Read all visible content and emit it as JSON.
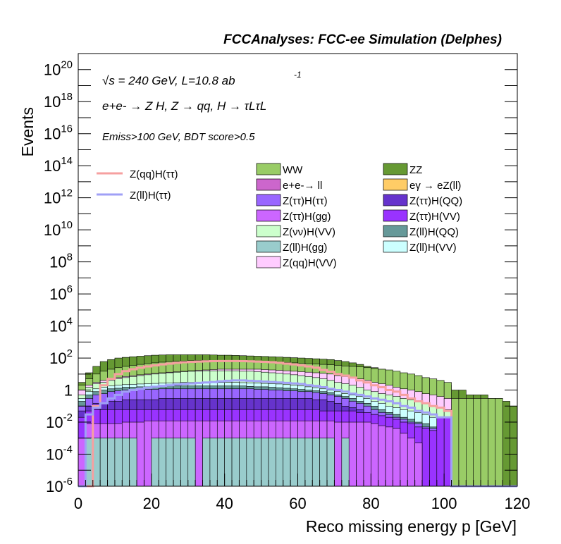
{
  "chart_data": {
    "type": "area",
    "stacked": true,
    "header": "FCCAnalyses: FCC-ee Simulation (Delphes)",
    "ylabel": "Events",
    "xlabel": "Reco missing energy p [GeV]",
    "xlim": [
      0,
      120
    ],
    "ylim": [
      1e-06,
      1e+21
    ],
    "log_y": true,
    "bin_width": 2,
    "x_ticks": [
      0,
      20,
      40,
      60,
      80,
      100,
      120
    ],
    "y_ticks": [
      "10^-6",
      "10^-4",
      "10^-2",
      "1",
      "10^2",
      "10^4",
      "10^6",
      "10^8",
      "10^10",
      "10^12",
      "10^14",
      "10^16",
      "10^18",
      "10^20"
    ],
    "annotations": {
      "energy": "√s = 240 GeV, L=10.8 ab",
      "energy_exp": "-1",
      "process": "e+e- → Z H, Z → qq, H → τLτL",
      "cuts": "Emiss>100 GeV, BDT score>0.5"
    },
    "legend_lines": [
      {
        "name": "Z(qq)H(ττ)",
        "color": "#f6a0a0"
      },
      {
        "name": "Z(ll)H(ττ)",
        "color": "#a0a0f6"
      }
    ],
    "legend_fills": [
      {
        "name": "WW",
        "color": "#99cc66"
      },
      {
        "name": "ZZ",
        "color": "#669933"
      },
      {
        "name": "e+e-→ ll",
        "color": "#cc66cc"
      },
      {
        "name": "eγ → eZ(ll)",
        "color": "#ffcc66"
      },
      {
        "name": "Z(ττ)H(ττ)",
        "color": "#9966ff"
      },
      {
        "name": "Z(ττ)H(QQ)",
        "color": "#6633cc"
      },
      {
        "name": "Z(ττ)H(gg)",
        "color": "#cc66ff"
      },
      {
        "name": "Z(ττ)H(VV)",
        "color": "#9933ff"
      },
      {
        "name": "Z(νν)H(VV)",
        "color": "#ccffcc"
      },
      {
        "name": "Z(ll)H(QQ)",
        "color": "#669999"
      },
      {
        "name": "Z(ll)H(gg)",
        "color": "#99cccc"
      },
      {
        "name": "Z(ll)H(VV)",
        "color": "#ccffff"
      },
      {
        "name": "Z(qq)H(VV)",
        "color": "#ffccff"
      }
    ],
    "stack_boundaries": [
      {
        "name": "Z(ll)H(gg)",
        "color": "#99cccc",
        "values": [
          0,
          0.001,
          0.001,
          0.001,
          0.001,
          0.001,
          0.001,
          0.001,
          0,
          0,
          0.001,
          0.001,
          0.001,
          0.001,
          0.001,
          0.001,
          0,
          0.001,
          0.001,
          0.001,
          0.001,
          0.001,
          0.001,
          0.001,
          0.001,
          0.001,
          0.001,
          0.001,
          0.001,
          0.001,
          0.001,
          0.001,
          0.001,
          0.001,
          0.001,
          0,
          0.001,
          0,
          0,
          0,
          0,
          0,
          0,
          0,
          0,
          0,
          0,
          0,
          0,
          0,
          0,
          0,
          0,
          0,
          0,
          0,
          0,
          0,
          0,
          0
        ]
      },
      {
        "name": "Z(ττ)H(gg)",
        "color": "#cc66ff",
        "values": [
          0.001,
          0.008,
          0.008,
          0.008,
          0.008,
          0.008,
          0.01,
          0.01,
          0.01,
          0.012,
          0.012,
          0.012,
          0.012,
          0.012,
          0.012,
          0.012,
          0.012,
          0.012,
          0.012,
          0.012,
          0.012,
          0.012,
          0.012,
          0.012,
          0.012,
          0.012,
          0.012,
          0.012,
          0.012,
          0.012,
          0.012,
          0.012,
          0.012,
          0.012,
          0.012,
          0.01,
          0.01,
          0.01,
          0.01,
          0.01,
          0.008,
          0.006,
          0.005,
          0.004,
          0.002,
          0.001,
          0.0005,
          0,
          0,
          0,
          0,
          0,
          0,
          0,
          0,
          0,
          0,
          0,
          0,
          0
        ]
      },
      {
        "name": "Z(ττ)H(VV)",
        "color": "#9933ff",
        "values": [
          0.02,
          0.05,
          0.06,
          0.06,
          0.06,
          0.06,
          0.06,
          0.06,
          0.06,
          0.06,
          0.06,
          0.06,
          0.06,
          0.06,
          0.06,
          0.06,
          0.06,
          0.06,
          0.06,
          0.06,
          0.06,
          0.06,
          0.06,
          0.06,
          0.06,
          0.06,
          0.06,
          0.06,
          0.06,
          0.06,
          0.06,
          0.06,
          0.06,
          0.05,
          0.05,
          0.05,
          0.05,
          0.05,
          0.04,
          0.04,
          0.03,
          0.025,
          0.02,
          0.015,
          0.01,
          0.008,
          0.005,
          0.004,
          0.003,
          0.02,
          0.02,
          0,
          0,
          0,
          0,
          0,
          0,
          0,
          0,
          0
        ]
      },
      {
        "name": "Z(ττ)H(QQ)",
        "color": "#6633cc",
        "values": [
          0.05,
          0.1,
          0.15,
          0.15,
          0.2,
          0.2,
          0.25,
          0.25,
          0.25,
          0.25,
          0.25,
          0.3,
          0.3,
          0.3,
          0.3,
          0.3,
          0.3,
          0.3,
          0.3,
          0.3,
          0.3,
          0.3,
          0.3,
          0.3,
          0.3,
          0.3,
          0.3,
          0.3,
          0.3,
          0.3,
          0.3,
          0.3,
          0.25,
          0.25,
          0.2,
          0.15,
          0.1,
          0.08,
          0.06,
          0.04,
          0.03,
          0.025,
          0.02,
          0.015,
          0.01,
          0.008,
          0.005,
          0.004,
          0.003,
          0.02,
          0.02,
          0,
          0,
          0,
          0,
          0,
          0,
          0,
          0,
          0
        ]
      },
      {
        "name": "Z(ττ)H(ττ)",
        "color": "#9966ff",
        "values": [
          0.1,
          0.3,
          0.5,
          0.6,
          0.8,
          0.9,
          1,
          1,
          1.1,
          1.1,
          1.1,
          1.2,
          1.2,
          1.2,
          1.2,
          1.2,
          1.2,
          1.2,
          1.2,
          1.2,
          1.2,
          1.2,
          1.2,
          1.2,
          1.1,
          1.1,
          1,
          1,
          0.9,
          0.9,
          0.8,
          0.8,
          0.7,
          0.6,
          0.5,
          0.4,
          0.3,
          0.2,
          0.15,
          0.1,
          0.06,
          0.04,
          0.03,
          0.02,
          0.015,
          0.01,
          0.008,
          0.005,
          0.004,
          0.02,
          0.02,
          0,
          0,
          0,
          0,
          0,
          0,
          0,
          0,
          0
        ]
      },
      {
        "name": "Z(ll)H(QQ)",
        "color": "#669999",
        "values": [
          0.2,
          0.5,
          0.8,
          1,
          1.2,
          1.3,
          1.5,
          1.5,
          1.6,
          1.6,
          1.7,
          1.8,
          1.8,
          1.8,
          1.8,
          1.8,
          1.8,
          1.8,
          1.8,
          1.8,
          1.8,
          1.8,
          1.8,
          1.7,
          1.6,
          1.6,
          1.5,
          1.4,
          1.3,
          1.2,
          1.1,
          1,
          0.9,
          0.8,
          0.7,
          0.5,
          0.4,
          0.3,
          0.2,
          0.15,
          0.1,
          0.06,
          0.04,
          0.03,
          0.02,
          0.015,
          0.01,
          0.008,
          0.005,
          0.02,
          0.02,
          0,
          0,
          0,
          0,
          0,
          0,
          0,
          0,
          0
        ]
      },
      {
        "name": "Z(ll)H(VV)",
        "color": "#ccffff",
        "values": [
          0.3,
          0.8,
          1.2,
          1.5,
          1.8,
          2,
          2.2,
          2.3,
          2.4,
          2.5,
          2.6,
          2.7,
          2.8,
          2.9,
          3,
          3,
          3,
          3,
          3,
          3,
          3,
          3,
          2.9,
          2.8,
          2.7,
          2.6,
          2.5,
          2.4,
          2.2,
          2,
          1.8,
          1.6,
          1.4,
          1.2,
          1,
          0.8,
          0.6,
          0.5,
          0.4,
          0.3,
          0.2,
          0.15,
          0.1,
          0.08,
          0.06,
          0.05,
          0.04,
          0.03,
          0.02,
          0.02,
          0.02,
          0,
          0,
          0,
          0,
          0,
          0,
          0,
          0,
          0
        ]
      },
      {
        "name": "Z(νν)H(VV)",
        "color": "#ccffcc",
        "values": [
          0.5,
          1.5,
          2.5,
          3,
          4,
          5,
          6,
          7,
          8,
          9,
          10,
          11,
          12,
          13,
          14,
          15,
          15,
          16,
          16,
          16,
          16,
          16,
          15,
          15,
          14,
          13,
          12,
          11,
          10,
          9,
          8,
          7,
          6,
          5,
          4,
          3,
          2.5,
          2,
          1.5,
          1,
          0.8,
          0.6,
          0.5,
          0.4,
          0.3,
          0.25,
          0.2,
          0.15,
          0.1,
          0.08,
          0.06,
          0,
          0,
          0,
          0,
          0,
          0,
          0,
          0,
          0
        ]
      },
      {
        "name": "Z(qq)H(VV)",
        "color": "#ffccff",
        "values": [
          1,
          2,
          3,
          4,
          5,
          6,
          7,
          8,
          9,
          10,
          11,
          12,
          13,
          14,
          15,
          16,
          17,
          18,
          19,
          20,
          20,
          20,
          20,
          20,
          20,
          19,
          18,
          17,
          16,
          15,
          14,
          13,
          12,
          11,
          10,
          8,
          7,
          6,
          5,
          4,
          3,
          2.5,
          2,
          1.5,
          1.2,
          1,
          0.8,
          0.6,
          0.5,
          0.4,
          0.3,
          0,
          0,
          0,
          0,
          0,
          0,
          0,
          0,
          0
        ]
      },
      {
        "name": "WW",
        "color": "#99cc66",
        "values": [
          2,
          5,
          10,
          15,
          20,
          25,
          30,
          35,
          40,
          45,
          50,
          55,
          60,
          62,
          65,
          68,
          70,
          70,
          70,
          70,
          70,
          68,
          66,
          64,
          62,
          60,
          58,
          55,
          52,
          50,
          48,
          45,
          42,
          40,
          38,
          35,
          32,
          30,
          28,
          25,
          22,
          20,
          18,
          15,
          12,
          10,
          8,
          6,
          5,
          4,
          3,
          0.3,
          0.3,
          0.3,
          0.3,
          0.3,
          0.3,
          0.3,
          0,
          0
        ]
      },
      {
        "name": "ZZ",
        "color": "#669933",
        "values": [
          3,
          12,
          30,
          60,
          80,
          100,
          110,
          120,
          130,
          140,
          150,
          155,
          160,
          160,
          160,
          160,
          160,
          160,
          155,
          150,
          150,
          145,
          140,
          135,
          130,
          125,
          120,
          115,
          110,
          105,
          100,
          95,
          90,
          85,
          80,
          70,
          60,
          50,
          40,
          30,
          25,
          20,
          15,
          12,
          10,
          8,
          6,
          5,
          4,
          3,
          2,
          1,
          1,
          0.5,
          0.5,
          0.5,
          0.3,
          0.3,
          0.2,
          0.1
        ]
      }
    ],
    "line_series": [
      {
        "name": "Z(qq)H(ττ)",
        "color": "#f6a0a0",
        "values": [
          0,
          0,
          0.1,
          2,
          5,
          10,
          15,
          20,
          25,
          30,
          35,
          40,
          45,
          50,
          55,
          58,
          60,
          62,
          64,
          65,
          65,
          65,
          64,
          62,
          60,
          58,
          55,
          50,
          45,
          40,
          35,
          30,
          25,
          18,
          14,
          10,
          8,
          6,
          4,
          3,
          2,
          1.5,
          1,
          0.8,
          0.5,
          0.3,
          0.2,
          0.15,
          0.1,
          0.08,
          0.05,
          0,
          0,
          0,
          0,
          0,
          0,
          0,
          0,
          0
        ]
      },
      {
        "name": "Z(ll)H(ττ)",
        "color": "#a0a0f6",
        "values": [
          0,
          0.03,
          0.08,
          0.15,
          0.3,
          0.5,
          0.8,
          1,
          1.2,
          1.4,
          1.6,
          1.8,
          2,
          2.2,
          2.4,
          2.6,
          2.8,
          3,
          3.2,
          3.5,
          3.8,
          4,
          4,
          3.8,
          3.6,
          3.4,
          3.2,
          3,
          2.8,
          2.6,
          2.4,
          2,
          1.8,
          1.5,
          1.2,
          1,
          0.8,
          0.6,
          0.5,
          0.4,
          0.3,
          0.25,
          0.2,
          0.15,
          0.1,
          0.08,
          0.05,
          0.04,
          0.03,
          0.02,
          0.02,
          0,
          0,
          0,
          0,
          0,
          0,
          0,
          0,
          0
        ]
      }
    ]
  }
}
